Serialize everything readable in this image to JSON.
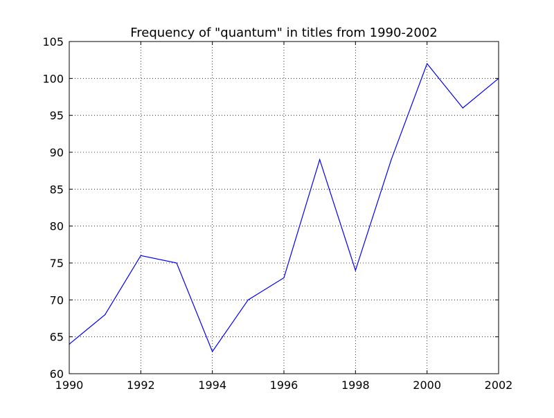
{
  "chart_data": {
    "type": "line",
    "title": "Frequency of \"quantum\" in titles from 1990-2002",
    "xlabel": "",
    "ylabel": "",
    "xlim": [
      1990,
      2002
    ],
    "ylim": [
      60,
      105
    ],
    "xticks": [
      1990,
      1992,
      1994,
      1996,
      1998,
      2000,
      2002
    ],
    "yticks": [
      60,
      65,
      70,
      75,
      80,
      85,
      90,
      95,
      100,
      105
    ],
    "grid": true,
    "legend": "none",
    "series": [
      {
        "color": "#0000ff",
        "x": [
          1990,
          1991,
          1992,
          1993,
          1994,
          1995,
          1996,
          1997,
          1998,
          1999,
          2000,
          2001,
          2002
        ],
        "y": [
          64,
          68,
          76,
          75,
          63,
          70,
          73,
          89,
          74,
          89,
          102,
          96,
          100
        ]
      }
    ]
  }
}
